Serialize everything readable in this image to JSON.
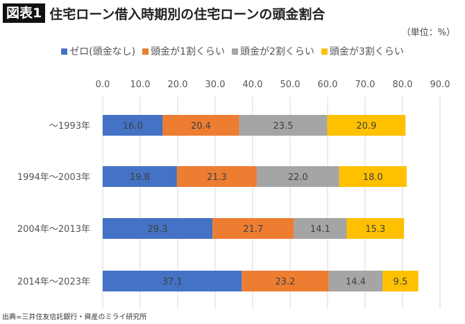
{
  "header": {
    "badge": "図表1",
    "title": "住宅ローン借入時期別の住宅ローンの頭金割合",
    "unit": "（単位：%）"
  },
  "source": "出典=三井住友信託銀行・資産のミライ研究所",
  "chart_data": {
    "type": "bar",
    "orientation": "horizontal",
    "stacked": true,
    "categories": [
      "～1993年",
      "1994年～2003年",
      "2004年～2013年",
      "2014年～2023年"
    ],
    "series": [
      {
        "name": "ゼロ(頭金なし)",
        "color": "#4472C4",
        "values": [
          16.0,
          19.8,
          29.3,
          37.1
        ]
      },
      {
        "name": "頭金が1割くらい",
        "color": "#ED7D31",
        "values": [
          20.4,
          21.3,
          21.7,
          23.2
        ]
      },
      {
        "name": "頭金が2割くらい",
        "color": "#A5A5A5",
        "values": [
          23.5,
          22.0,
          14.1,
          14.4
        ]
      },
      {
        "name": "頭金が3割くらい",
        "color": "#FFC000",
        "values": [
          20.9,
          18.0,
          15.3,
          9.5
        ]
      }
    ],
    "xlim": [
      0,
      90
    ],
    "xticks": [
      "0.0",
      "10.0",
      "20.0",
      "30.0",
      "40.0",
      "50.0",
      "60.0",
      "70.0",
      "80.0",
      "90.0"
    ],
    "grid": true,
    "legend_position": "top"
  }
}
